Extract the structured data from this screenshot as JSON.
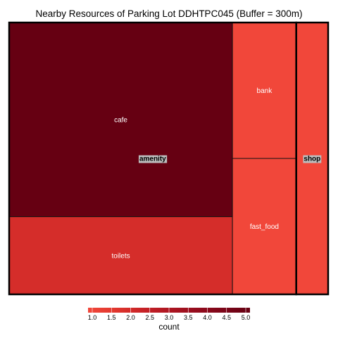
{
  "chart_data": {
    "type": "treemap",
    "title": "Nearby Resources of Parking Lot DDHTPC045 (Buffer = 300m)",
    "groups": [
      {
        "name": "amenity",
        "tiles": [
          {
            "name": "cafe",
            "count": 5
          },
          {
            "name": "toilets",
            "count": 2
          },
          {
            "name": "bank",
            "count": 1
          },
          {
            "name": "fast_food",
            "count": 1
          }
        ]
      },
      {
        "name": "shop",
        "tiles": [
          {
            "name": "",
            "count": 1
          }
        ]
      }
    ],
    "legend": {
      "title": "count",
      "position": "bottom",
      "ticks": [
        "1.0",
        "1.5",
        "2.0",
        "2.5",
        "3.0",
        "3.5",
        "4.0",
        "4.5",
        "5.0"
      ],
      "range": [
        1,
        5
      ],
      "colors": [
        "#f1473a",
        "#e1372e",
        "#c82226",
        "#ae1621",
        "#950c1d",
        "#7c0518",
        "#660012"
      ]
    }
  }
}
